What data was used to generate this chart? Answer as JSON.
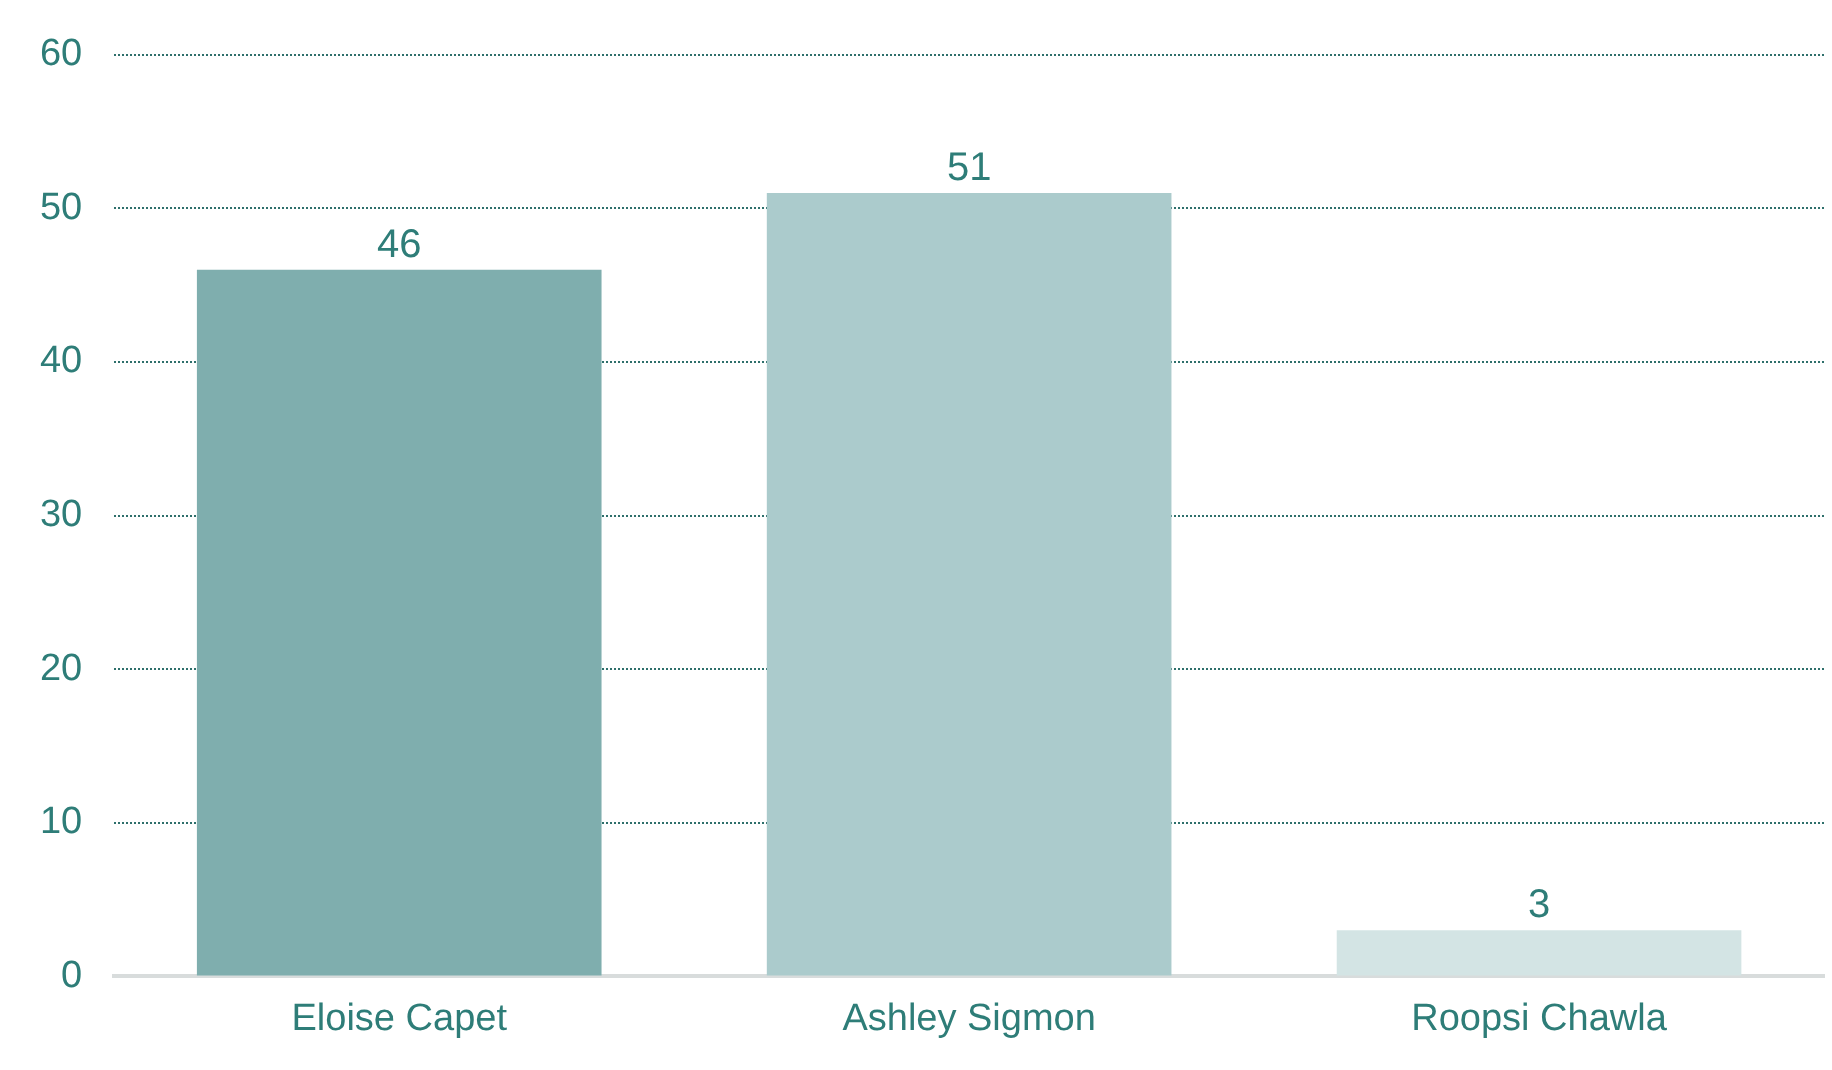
{
  "chart_data": {
    "type": "bar",
    "categories": [
      "Eloise Capet",
      "Ashley Sigmon",
      "Roopsi Chawla"
    ],
    "values": [
      46,
      51,
      3
    ],
    "colors": [
      "#7faeae",
      "#abcbcc",
      "#d3e4e4"
    ],
    "ylim": [
      0,
      60
    ],
    "yticks": [
      0,
      10,
      20,
      30,
      40,
      50,
      60
    ],
    "grid": "y",
    "data_labels": true,
    "legend": false
  }
}
